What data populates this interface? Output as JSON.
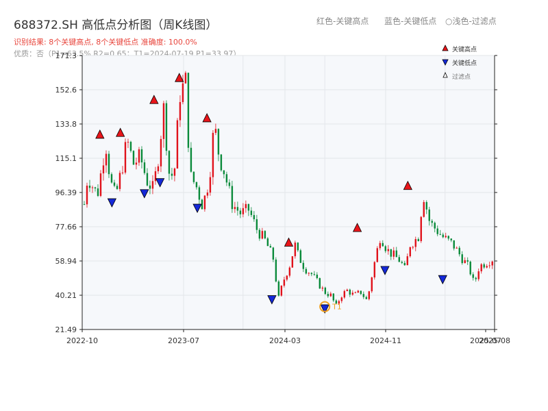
{
  "chart_data": {
    "type": "candlestick",
    "title": "688372.SH 高低点分析图（周K线图）",
    "header_legend": [
      "红色-关键高点",
      "蓝色-关键低点",
      "○浅色-过滤点"
    ],
    "subtitle_result": "识别结果: 8个关键高点, 8个关键低点  准确度: 100.0%",
    "subtitle_quality": "优质：否（P1=63.5%  R2=0.65；T1=2024-07-19 P1=33.97）",
    "ylim": [
      21.49,
      171.3
    ],
    "y_ticks": [
      "21.49",
      "40.21",
      "58.94",
      "77.66",
      "96.39",
      "115.1",
      "133.8",
      "152.6",
      "171.3"
    ],
    "x_ticks": [
      "2022-10",
      "2023-07",
      "2024-03",
      "2024-11",
      "2025-07",
      "2025-08"
    ],
    "legend": [
      "关键高点",
      "关键低点",
      "过滤点"
    ],
    "colors": {
      "up": "#e0121b",
      "down": "#0a8a3a",
      "high_marker": "#e8151a",
      "low_marker": "#1428d8",
      "t1": "#f0a020",
      "grid": "#e3e6ea",
      "plot_bg": "#f6f8fb"
    },
    "price_path": [
      [
        0,
        90
      ],
      [
        2,
        105
      ],
      [
        5,
        100
      ],
      [
        8,
        95
      ],
      [
        11,
        112
      ],
      [
        13,
        124
      ],
      [
        16,
        102
      ],
      [
        19,
        94
      ],
      [
        23,
        110
      ],
      [
        26,
        125
      ],
      [
        30,
        112
      ],
      [
        34,
        116
      ],
      [
        38,
        103
      ],
      [
        42,
        98
      ],
      [
        46,
        122
      ],
      [
        48,
        145
      ],
      [
        52,
        103
      ],
      [
        55,
        110
      ],
      [
        58,
        150
      ],
      [
        62,
        158
      ],
      [
        64,
        106
      ],
      [
        68,
        100
      ],
      [
        72,
        89
      ],
      [
        76,
        104
      ],
      [
        79,
        134
      ],
      [
        82,
        116
      ],
      [
        85,
        108
      ],
      [
        90,
        90
      ],
      [
        95,
        85
      ],
      [
        100,
        87
      ],
      [
        105,
        76
      ],
      [
        110,
        70
      ],
      [
        115,
        60
      ],
      [
        118,
        38
      ],
      [
        121,
        48
      ],
      [
        125,
        57
      ],
      [
        128,
        68
      ],
      [
        130,
        62
      ],
      [
        134,
        55
      ],
      [
        138,
        52
      ],
      [
        142,
        47
      ],
      [
        146,
        42
      ],
      [
        150,
        40
      ],
      [
        153,
        34
      ],
      [
        156,
        40
      ],
      [
        160,
        43
      ],
      [
        164,
        40
      ],
      [
        168,
        42
      ],
      [
        172,
        37
      ],
      [
        175,
        52
      ],
      [
        180,
        73
      ],
      [
        184,
        65
      ],
      [
        188,
        62
      ],
      [
        192,
        59
      ],
      [
        195,
        54
      ],
      [
        198,
        68
      ],
      [
        203,
        72
      ],
      [
        206,
        96
      ],
      [
        210,
        80
      ],
      [
        214,
        76
      ],
      [
        218,
        72
      ],
      [
        224,
        68
      ],
      [
        230,
        60
      ],
      [
        234,
        55
      ],
      [
        237,
        46
      ],
      [
        240,
        56
      ],
      [
        244,
        58
      ],
      [
        248,
        60
      ]
    ],
    "key_highs": [
      {
        "week": 13,
        "price": 126
      },
      {
        "week": 30,
        "price": 127
      },
      {
        "week": 58,
        "price": 145
      },
      {
        "week": 79,
        "price": 157
      },
      {
        "week": 102,
        "price": 135
      },
      {
        "week": 170,
        "price": 67
      },
      {
        "week": 227,
        "price": 75
      },
      {
        "week": 269,
        "price": 98
      }
    ],
    "key_lows": [
      {
        "week": 23,
        "price": 93
      },
      {
        "week": 50,
        "price": 98
      },
      {
        "week": 63,
        "price": 104
      },
      {
        "week": 94,
        "price": 90
      },
      {
        "week": 156,
        "price": 40
      },
      {
        "week": 200,
        "price": 35
      },
      {
        "week": 250,
        "price": 56
      },
      {
        "week": 298,
        "price": 51
      }
    ],
    "t1": {
      "label": "T1",
      "week": 200,
      "price": 33.97
    }
  }
}
